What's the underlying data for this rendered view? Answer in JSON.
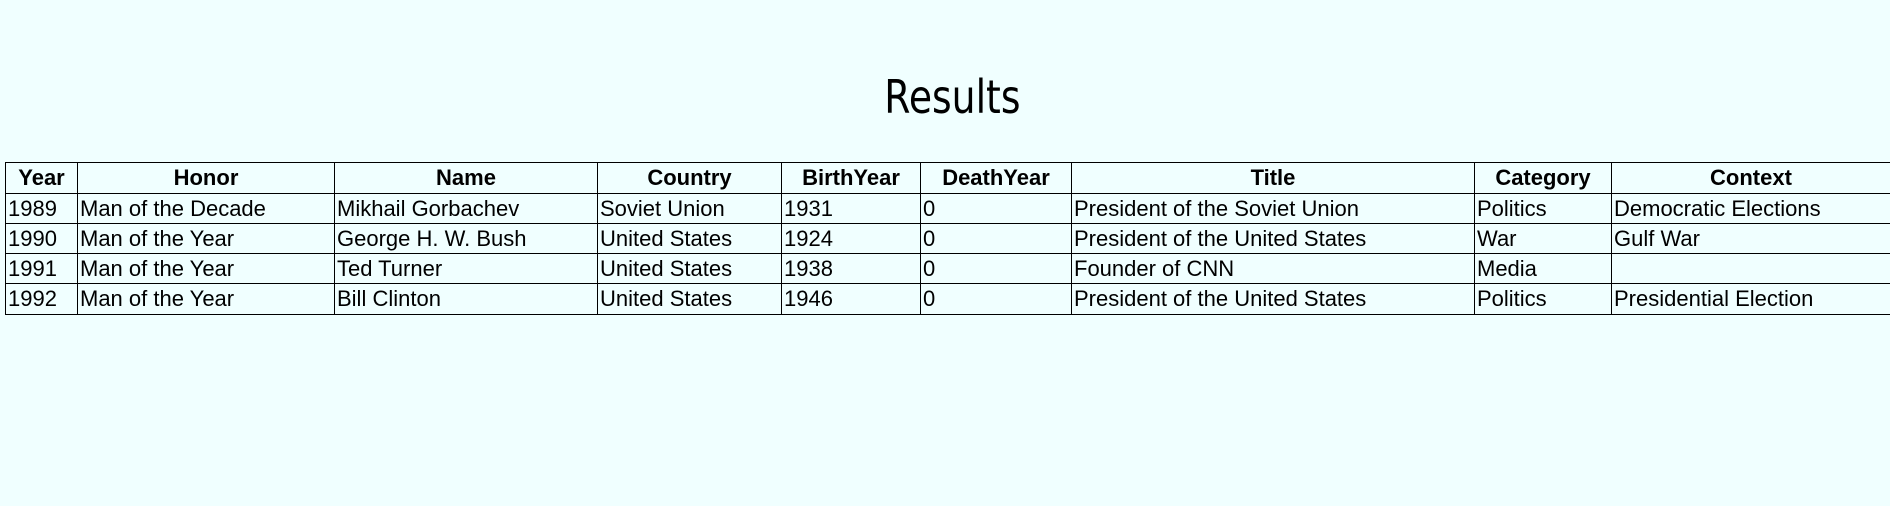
{
  "page": {
    "title": "Results"
  },
  "table": {
    "headers": [
      "Year",
      "Honor",
      "Name",
      "Country",
      "BirthYear",
      "DeathYear",
      "Title",
      "Category",
      "Context"
    ],
    "rows": [
      [
        "1989",
        "Man of the Decade",
        "Mikhail Gorbachev",
        "Soviet Union",
        "1931",
        "0",
        "President of the Soviet Union",
        "Politics",
        "Democratic Elections"
      ],
      [
        "1990",
        "Man of the Year",
        "George H. W. Bush",
        "United States",
        "1924",
        "0",
        "President of the United States",
        "War",
        "Gulf War"
      ],
      [
        "1991",
        "Man of the Year",
        "Ted Turner",
        "United States",
        "1938",
        "0",
        "Founder of CNN",
        "Media",
        ""
      ],
      [
        "1992",
        "Man of the Year",
        "Bill Clinton",
        "United States",
        "1946",
        "0",
        "President of the United States",
        "Politics",
        "Presidential Election"
      ]
    ]
  },
  "colors": {
    "background": "#f0ffff",
    "text": "#000000",
    "border": "#000000"
  }
}
